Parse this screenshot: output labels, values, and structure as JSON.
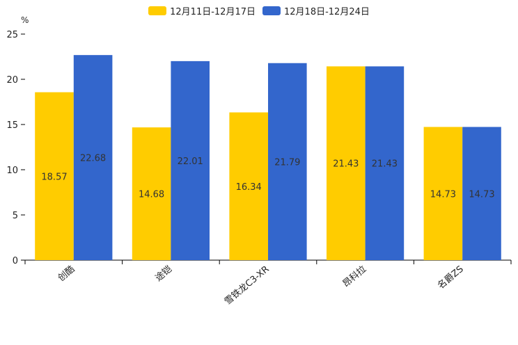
{
  "chart_data": {
    "type": "bar",
    "ylabel": "%",
    "ylim": [
      0,
      25
    ],
    "yticks": [
      0,
      5,
      10,
      15,
      20,
      25
    ],
    "categories": [
      "创酷",
      "途铠",
      "雪铁龙C3-XR",
      "昂科拉",
      "名爵ZS"
    ],
    "series": [
      {
        "name": "12月11日-12月17日",
        "color": "#FFCC00",
        "values": [
          18.57,
          14.68,
          16.34,
          21.43,
          14.73
        ]
      },
      {
        "name": "12月18日-12月24日",
        "color": "#3366CC",
        "values": [
          22.68,
          22.01,
          21.79,
          21.43,
          14.73
        ]
      }
    ],
    "legend_position": "top-center",
    "grid": false
  }
}
